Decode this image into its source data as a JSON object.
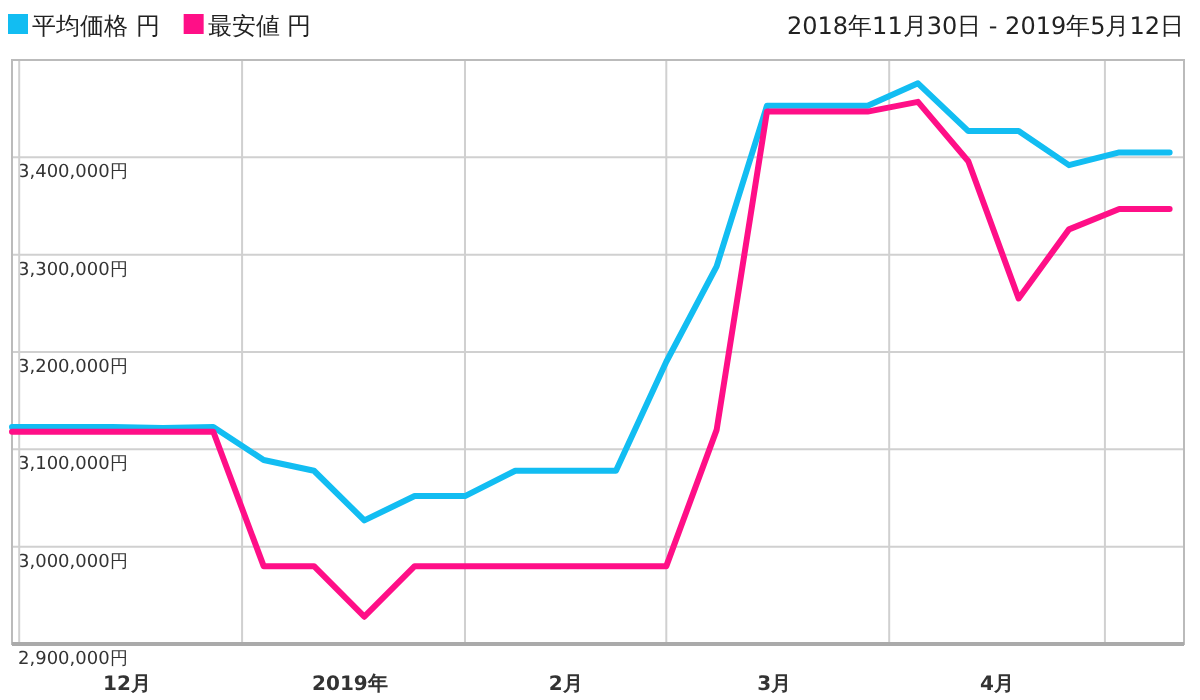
{
  "chart_data": {
    "type": "line",
    "x": [
      "2018-11-30",
      "2018-12-07",
      "2018-12-14",
      "2018-12-21",
      "2018-12-28",
      "2019-01-04",
      "2019-01-11",
      "2019-01-18",
      "2019-01-25",
      "2019-02-01",
      "2019-02-08",
      "2019-02-15",
      "2019-02-22",
      "2019-03-01",
      "2019-03-08",
      "2019-03-15",
      "2019-03-22",
      "2019-03-29",
      "2019-04-05",
      "2019-04-12",
      "2019-04-19",
      "2019-04-26",
      "2019-05-03",
      "2019-05-10"
    ],
    "series": [
      {
        "name": "平均価格 円",
        "color": "#12bdf2",
        "values": [
          3123000,
          3123000,
          3123000,
          3122000,
          3123000,
          3089000,
          3078000,
          3027000,
          3052000,
          3052000,
          3078000,
          3078000,
          3078000,
          3190000,
          3288000,
          3453000,
          3453000,
          3453000,
          3476000,
          3427000,
          3427000,
          3392000,
          3405000,
          3405000
        ]
      },
      {
        "name": "最安値 円",
        "color": "#ff0f87",
        "values": [
          3118000,
          3118000,
          3118000,
          3118000,
          3118000,
          2980000,
          2980000,
          2928000,
          2980000,
          2980000,
          2980000,
          2980000,
          2980000,
          2980000,
          3120000,
          3447000,
          3447000,
          3447000,
          3457000,
          3396000,
          3255000,
          3326000,
          3347000,
          3347000
        ]
      }
    ],
    "xlim": [
      "2018-11-30",
      "2019-05-12"
    ],
    "xticks": [
      {
        "value": "2018-12-01",
        "label": null
      },
      {
        "value": "2018-12-16",
        "label": "12月"
      },
      {
        "value": "2019-01-01",
        "label": null
      },
      {
        "value": "2019-01-16",
        "label": "2019年"
      },
      {
        "value": "2019-02-01",
        "label": null
      },
      {
        "value": "2019-02-15",
        "label": "2月"
      },
      {
        "value": "2019-03-01",
        "label": null
      },
      {
        "value": "2019-03-16",
        "label": "3月"
      },
      {
        "value": "2019-04-01",
        "label": null
      },
      {
        "value": "2019-04-16",
        "label": "4月"
      },
      {
        "value": "2019-05-01",
        "label": null
      }
    ],
    "ylim": [
      2900000,
      3500000
    ],
    "yticks": [
      {
        "value": 2900000,
        "label": "2,900,000円"
      },
      {
        "value": 3000000,
        "label": "3,000,000円"
      },
      {
        "value": 3100000,
        "label": "3,100,000円"
      },
      {
        "value": 3200000,
        "label": "3,200,000円"
      },
      {
        "value": 3300000,
        "label": "3,300,000円"
      },
      {
        "value": 3400000,
        "label": "3,400,000円"
      },
      {
        "value": 3500000,
        "label": null
      }
    ],
    "grid": true,
    "legend": "top left",
    "annotations": [
      "2018年11月30日 - 2019年5月12日"
    ]
  }
}
